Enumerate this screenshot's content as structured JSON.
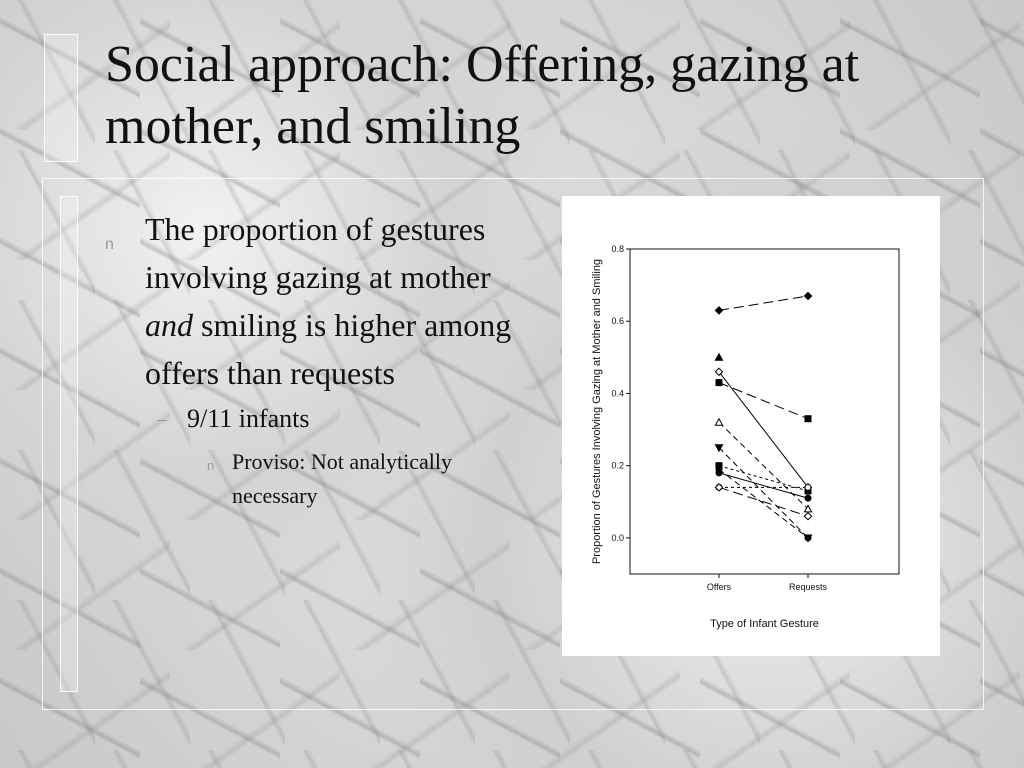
{
  "slide": {
    "title": "Social approach: Offering, gazing at mother, and smiling",
    "bullet1": {
      "marker": "n",
      "text_part1": "The proportion of gestures involving gazing at mother",
      "text_emphasis": "and",
      "text_part2": "smiling is higher among offers than requests"
    },
    "bullet2": {
      "marker": "–",
      "text": "9/11 infants"
    },
    "bullet3": {
      "marker": "n",
      "text": "Proviso: Not analytically necessary"
    }
  },
  "chart_data": {
    "type": "line",
    "xlabel": "Type of Infant Gesture",
    "ylabel": "Proportion of Gestures Involving Gazing at Mother and Smiling",
    "categories": [
      "Offers",
      "Requests"
    ],
    "ylim": [
      -0.1,
      0.8
    ],
    "yticks": [
      "0.0",
      "0.2",
      "0.4",
      "0.6",
      "0.8"
    ],
    "grid": false,
    "series": [
      {
        "values": [
          0.63,
          0.67
        ],
        "marker": "diamond",
        "filled": true,
        "dash": "long"
      },
      {
        "values": [
          0.5,
          null
        ],
        "marker": "triangle-up",
        "filled": true,
        "dash": "none"
      },
      {
        "values": [
          0.43,
          0.33
        ],
        "marker": "square",
        "filled": true,
        "dash": "long"
      },
      {
        "values": [
          0.46,
          0.14
        ],
        "marker": "diamond",
        "filled": false,
        "dash": "solid"
      },
      {
        "values": [
          0.32,
          0.08
        ],
        "marker": "triangle-up",
        "filled": false,
        "dash": "medium"
      },
      {
        "values": [
          0.25,
          0.0
        ],
        "marker": "triangle-down",
        "filled": true,
        "dash": "medium"
      },
      {
        "values": [
          0.2,
          0.13
        ],
        "marker": "square",
        "filled": true,
        "dash": "short"
      },
      {
        "values": [
          0.19,
          0.0
        ],
        "marker": "circle",
        "filled": true,
        "dash": "medium"
      },
      {
        "values": [
          0.18,
          0.11
        ],
        "marker": "circle",
        "filled": true,
        "dash": "solid"
      },
      {
        "values": [
          0.14,
          0.14
        ],
        "marker": "circle",
        "filled": false,
        "dash": "short"
      },
      {
        "values": [
          0.14,
          0.06
        ],
        "marker": "diamond",
        "filled": false,
        "dash": "long"
      }
    ]
  }
}
